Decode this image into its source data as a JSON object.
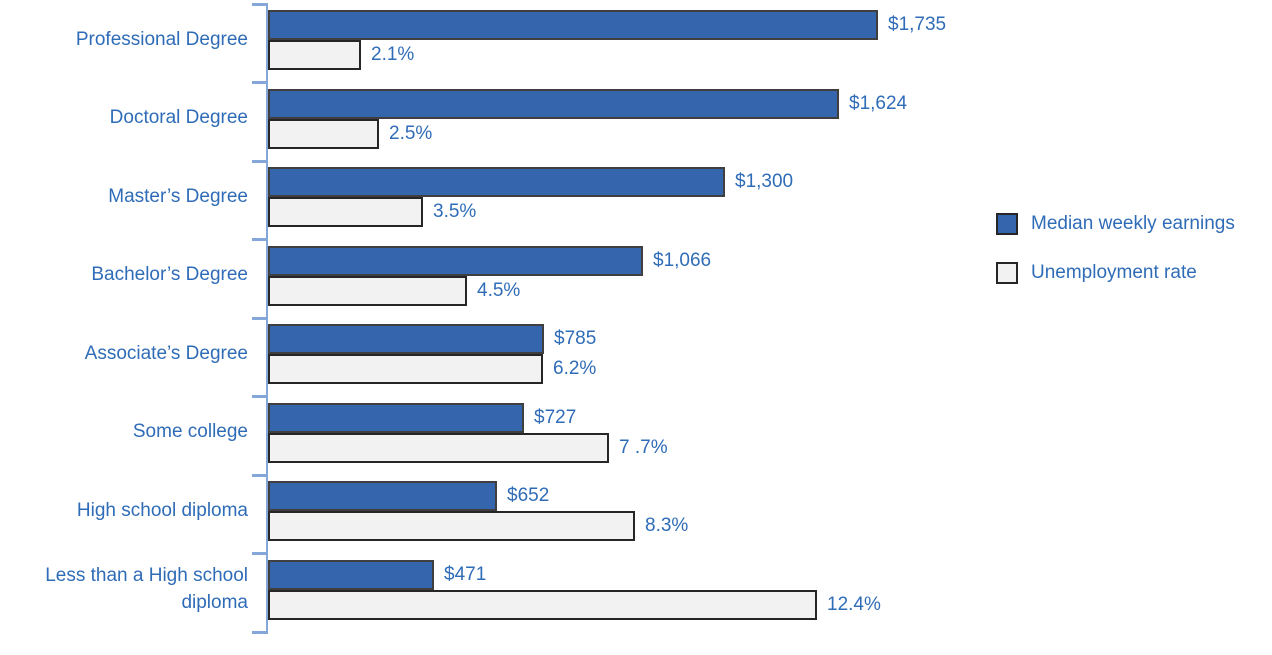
{
  "colors": {
    "earnings_bar": "#3465ad",
    "unemployment_bar": "#f2f2f2",
    "earnings_bar_border": "#3f3f3f",
    "unemployment_bar_border": "#262626",
    "axis": "#84a6d8",
    "text": "#2f6cb7"
  },
  "chart_data": {
    "type": "bar",
    "orientation": "horizontal",
    "title": "",
    "grid": false,
    "legend_position": "right",
    "categories": [
      "Professional Degree",
      "Doctoral Degree",
      "Master’s Degree",
      "Bachelor’s Degree",
      "Associate’s Degree",
      "Some college",
      "High school diploma",
      "Less than a High school diploma"
    ],
    "series": [
      {
        "name": "Median weekly earnings",
        "color": "#3465ad",
        "axis_max": 1735,
        "values": [
          1735,
          1624,
          1300,
          1066,
          785,
          727,
          652,
          471
        ],
        "labels": [
          "$1,735",
          "$1,624",
          "$1,300",
          "$1,066",
          "$785",
          "$727",
          "$652",
          "$471"
        ]
      },
      {
        "name": "Unemployment rate",
        "color": "#f2f2f2",
        "axis_max": 12.4,
        "values": [
          2.1,
          2.5,
          3.5,
          4.5,
          6.2,
          7.7,
          8.3,
          12.4
        ],
        "labels": [
          "2.1%",
          "2.5%",
          "3.5%",
          "4.5%",
          "6.2%",
          "7 .7%",
          "8.3%",
          "12.4%"
        ]
      }
    ]
  }
}
